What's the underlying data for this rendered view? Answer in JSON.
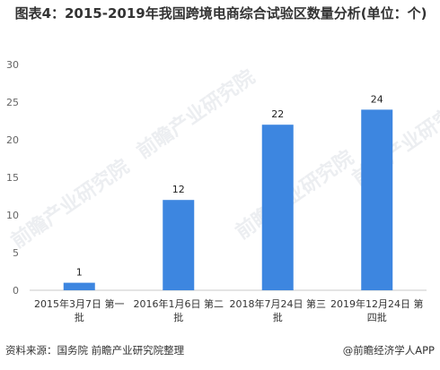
{
  "title": "图表4：2015-2019年我国跨境电商综合试验区数量分析(单位：个)",
  "footer": {
    "source": "资料来源：国务院 前瞻产业研究院整理",
    "brand": "@前瞻经济学人APP"
  },
  "watermark": "前瞻产业研究院",
  "colors": {
    "bar": "#3d86e0",
    "axis": "#c8c8c8"
  },
  "chart_data": {
    "type": "bar",
    "title": "图表4：2015-2019年我国跨境电商综合试验区数量分析(单位：个)",
    "categories": [
      [
        "2015年3月7日 第一",
        "批"
      ],
      [
        "2016年1月6日 第二",
        "批"
      ],
      [
        "2018年7月24日 第三",
        "批"
      ],
      [
        "2019年12月24日 第",
        "四批"
      ]
    ],
    "values": [
      1,
      12,
      22,
      24
    ],
    "ylim": [
      0,
      30
    ],
    "yticks": [
      0,
      5,
      10,
      15,
      20,
      25,
      30
    ],
    "xlabel": "",
    "ylabel": "",
    "grid": false,
    "data_labels": true
  }
}
